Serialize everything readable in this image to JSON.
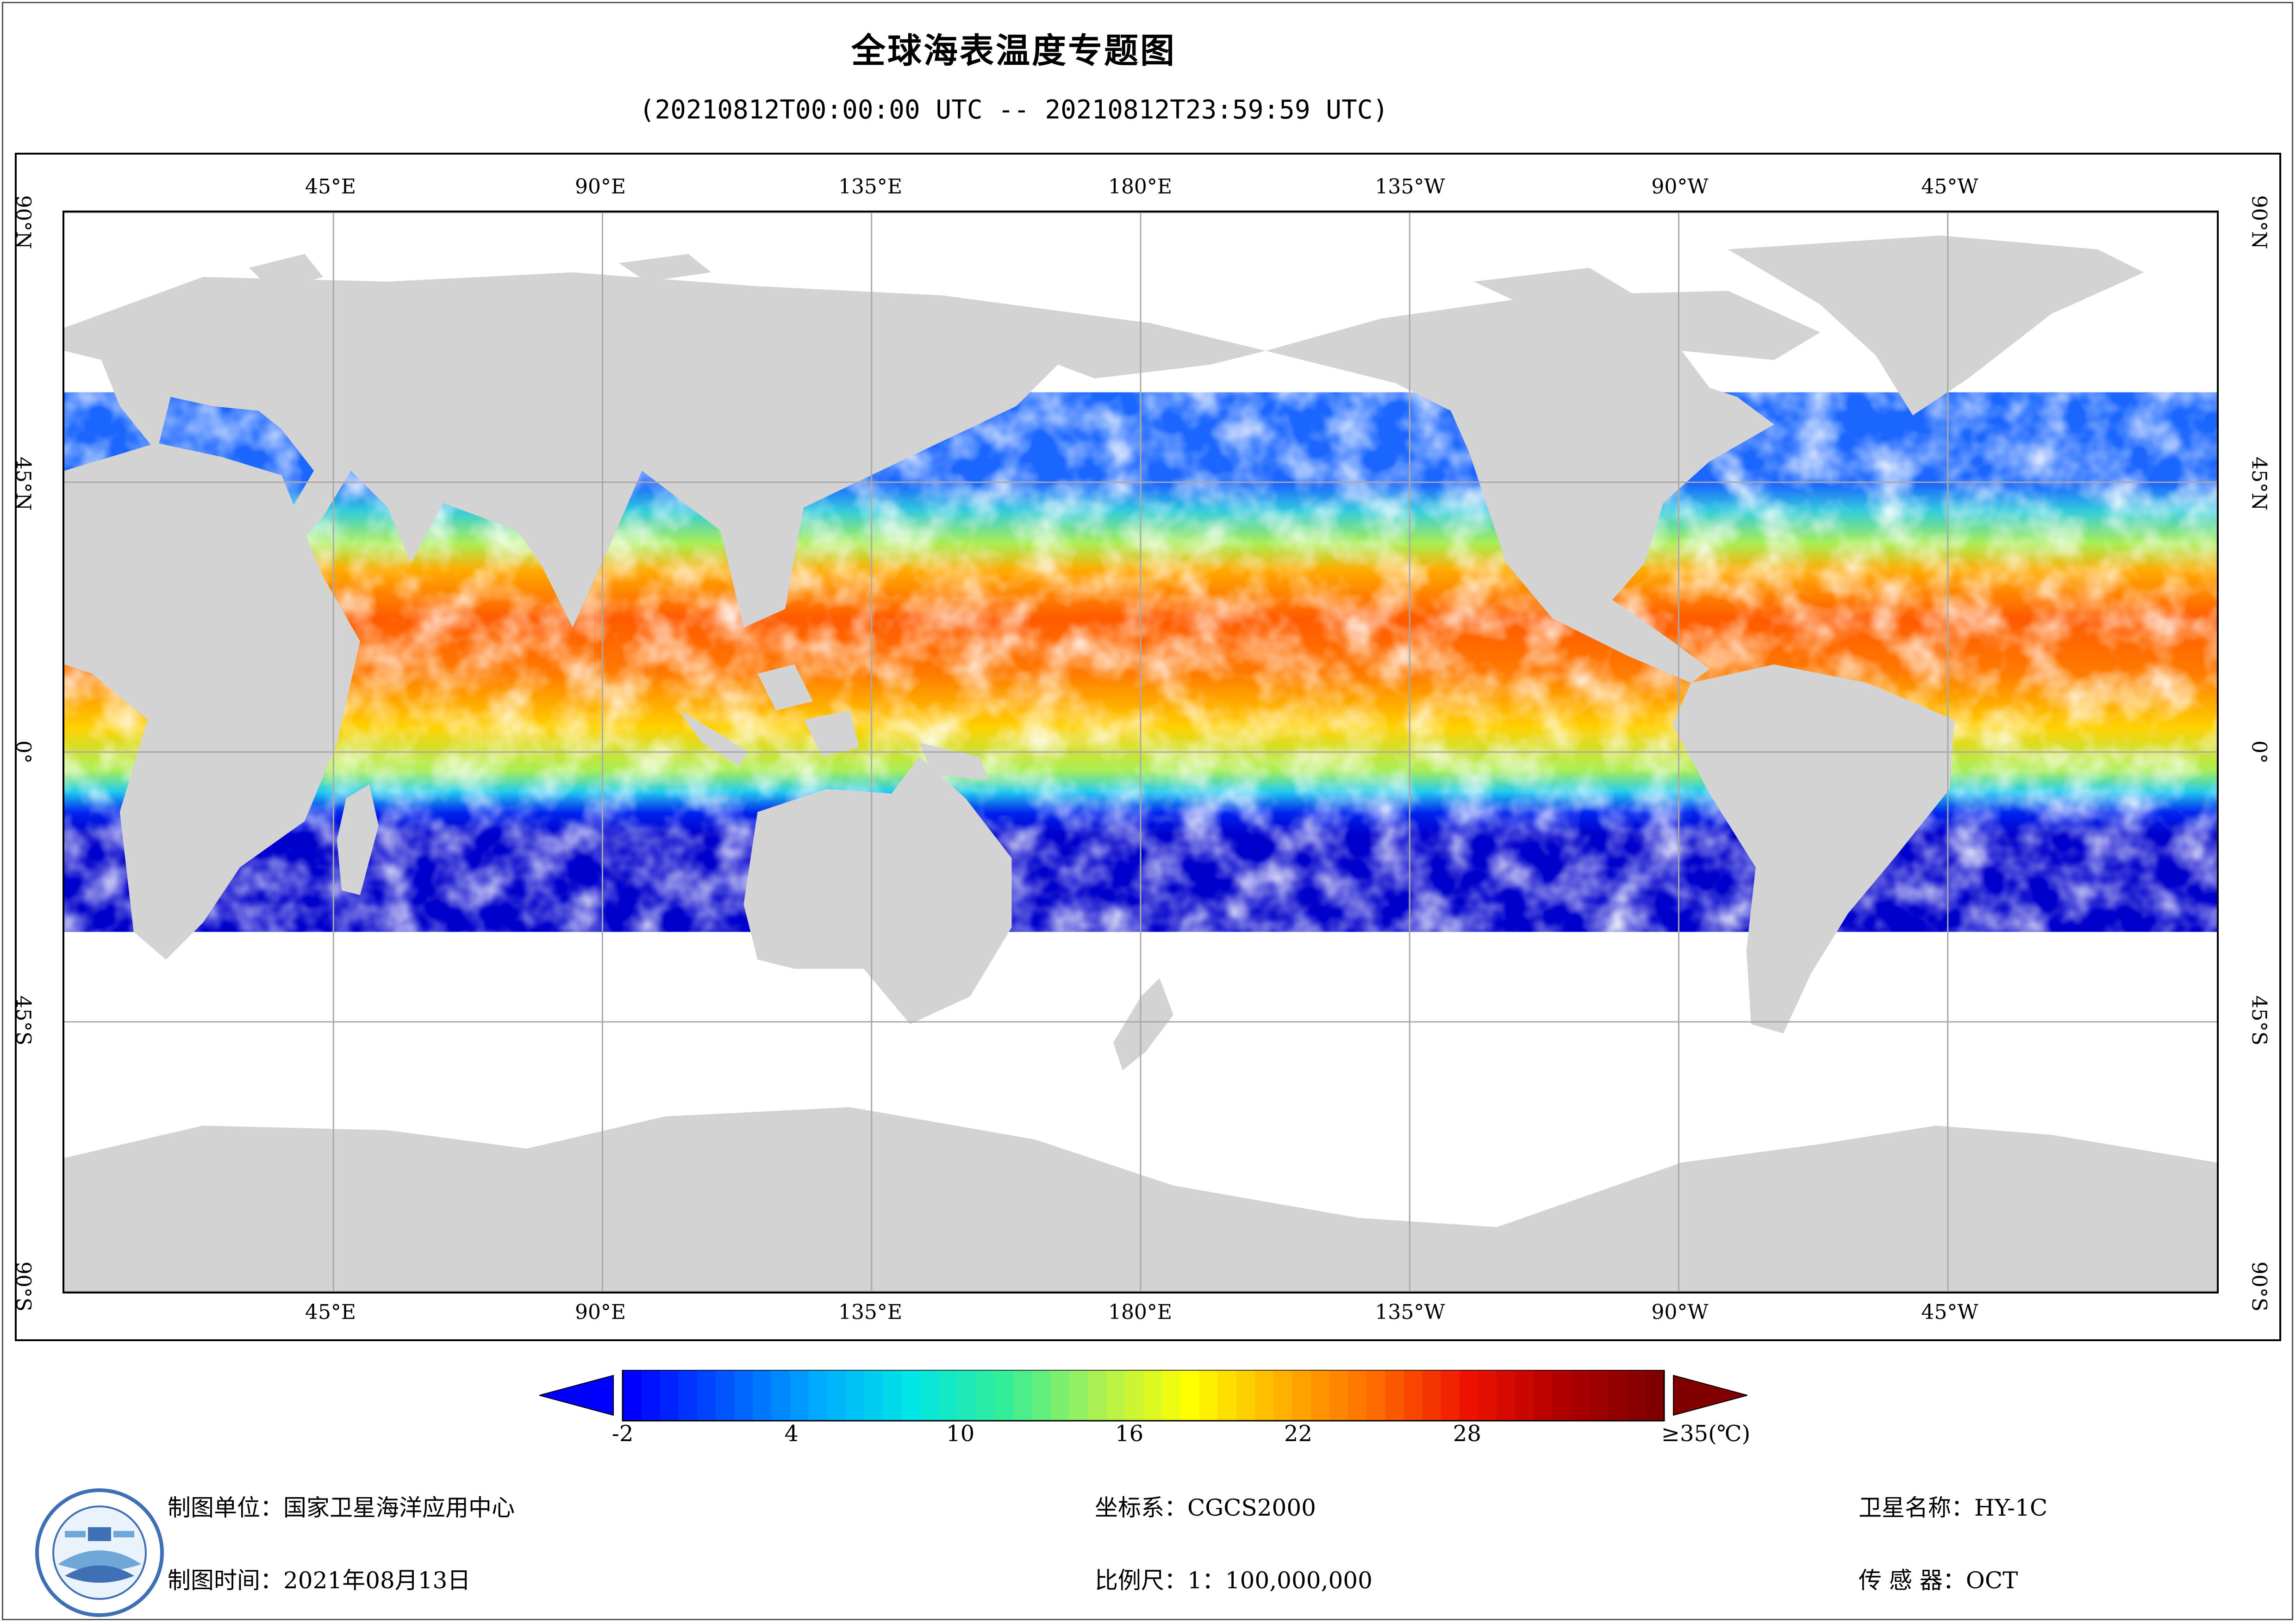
{
  "title": "全球海表温度专题图",
  "subtitle": "(20210812T00:00:00 UTC -- 20210812T23:59:59 UTC)",
  "map": {
    "top_ticks": [
      "45°E",
      "90°E",
      "135°E",
      "180°E",
      "135°W",
      "90°W",
      "45°W"
    ],
    "bottom_ticks": [
      "45°E",
      "90°E",
      "135°E",
      "180°E",
      "135°W",
      "90°W",
      "45°W"
    ],
    "lon_tick_values": [
      45,
      90,
      135,
      180,
      225,
      270,
      315
    ],
    "side_ticks": [
      "90°N",
      "45°N",
      "0°",
      "45°S",
      "90°S"
    ],
    "lat_tick_values": [
      90,
      45,
      0,
      -45,
      -90
    ],
    "colors": {
      "land": "#d3d3d3",
      "no_data": "#ffffff",
      "graticule": "#a9a9a9"
    }
  },
  "colorbar": {
    "labels": [
      "-2",
      "4",
      "10",
      "16",
      "22",
      "28",
      "≥35(℃)"
    ],
    "label_values": [
      -2,
      4,
      10,
      16,
      22,
      28,
      35
    ],
    "range": [
      -2,
      35
    ],
    "steps": 56,
    "gradient_stops": [
      "#0000ff",
      "#0055ff",
      "#00aaff",
      "#00e5e5",
      "#33ee99",
      "#aaf055",
      "#ffff00",
      "#ffb000",
      "#ff6a00",
      "#ee1100",
      "#b00000",
      "#800000"
    ],
    "under_color": "#0000ff",
    "over_color": "#800000"
  },
  "footer": {
    "producer_label": "制图单位：",
    "producer_value": "国家卫星海洋应用中心",
    "date_label": "制图时间：",
    "date_value": "2021年08月13日",
    "crs_label": "坐标系：",
    "crs_value": "CGCS2000",
    "scale_label": "比例尺：",
    "scale_value": "1：100,000,000",
    "satellite_label": "卫星名称：",
    "satellite_value": "HY-1C",
    "sensor_label": "传 感 器：",
    "sensor_value": "OCT"
  }
}
